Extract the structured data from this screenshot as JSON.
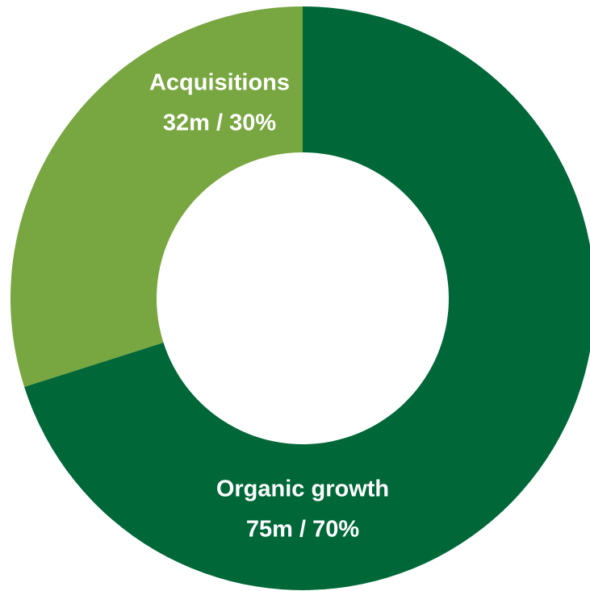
{
  "chart_data": {
    "type": "donut",
    "categories": [
      "Organic growth",
      "Acquisitions"
    ],
    "values": [
      75,
      32
    ],
    "value_labels": [
      "75m / 70%",
      "32m / 30%"
    ],
    "colors": [
      "#006838",
      "#78a640"
    ]
  }
}
